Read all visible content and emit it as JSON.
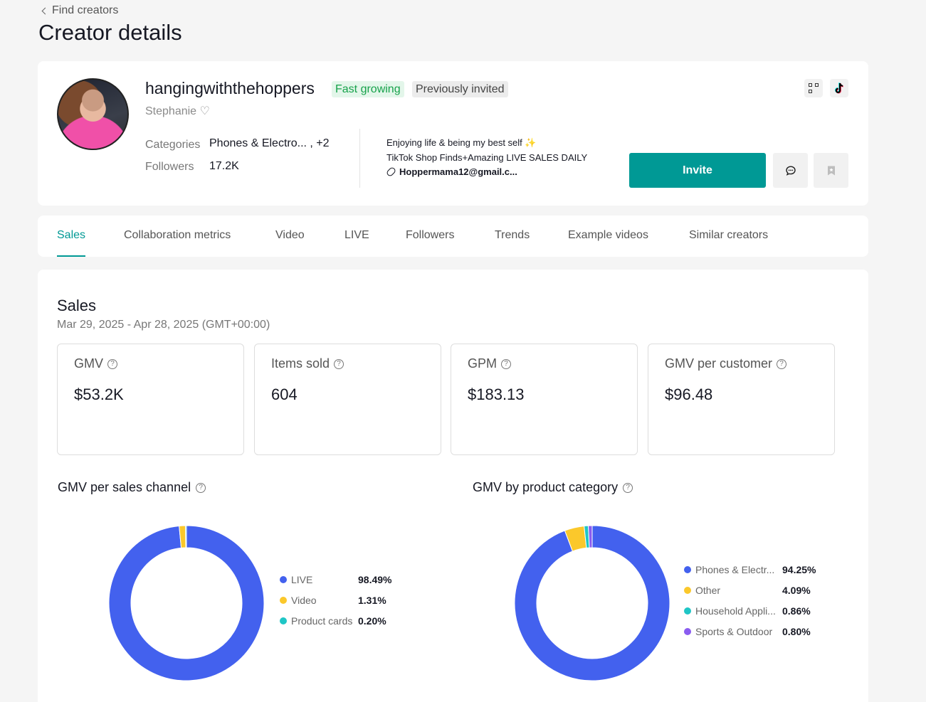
{
  "nav": {
    "back_label": "Find creators"
  },
  "page": {
    "title": "Creator details"
  },
  "profile": {
    "username": "hangingwiththehoppers",
    "badges": [
      "Fast growing",
      "Previously invited"
    ],
    "nickname": "Stephanie ♡",
    "categories_label": "Categories",
    "categories_value": "Phones & Electro...   , +2",
    "followers_label": "Followers",
    "followers_value": "17.2K",
    "bio": [
      "Enjoying life & being my best self ✨",
      "TikTok Shop Finds+Amazing LIVE SALES DAILY",
      "Hoppermama12@gmail.c..."
    ],
    "invite_label": "Invite"
  },
  "tabs": [
    "Sales",
    "Collaboration metrics",
    "Video",
    "LIVE",
    "Followers",
    "Trends",
    "Example videos",
    "Similar creators"
  ],
  "sales": {
    "title": "Sales",
    "date_range": "Mar 29, 2025 - Apr 28, 2025 (GMT+00:00)",
    "metrics": [
      {
        "label": "GMV",
        "value": "$53.2K"
      },
      {
        "label": "Items sold",
        "value": "604"
      },
      {
        "label": "GPM",
        "value": "$183.13"
      },
      {
        "label": "GMV per customer",
        "value": "$96.48"
      }
    ]
  },
  "chart_data": [
    {
      "type": "pie",
      "title": "GMV per sales channel",
      "categories": [
        "LIVE",
        "Video",
        "Product cards"
      ],
      "values": [
        98.49,
        1.31,
        0.2
      ],
      "value_labels": [
        "98.49%",
        "1.31%",
        "0.20%"
      ],
      "colors": [
        "#4361ee",
        "#fbc82b",
        "#1fc6c6"
      ],
      "legend": "right"
    },
    {
      "type": "pie",
      "title": "GMV by product category",
      "categories": [
        "Phones & Electr...",
        "Other",
        "Household Appli...",
        "Sports & Outdoor"
      ],
      "values": [
        94.25,
        4.09,
        0.86,
        0.8
      ],
      "value_labels": [
        "94.25%",
        "4.09%",
        "0.86%",
        "0.80%"
      ],
      "colors": [
        "#4361ee",
        "#fbc82b",
        "#1fc6c6",
        "#8a5cf0"
      ],
      "legend": "right"
    }
  ]
}
